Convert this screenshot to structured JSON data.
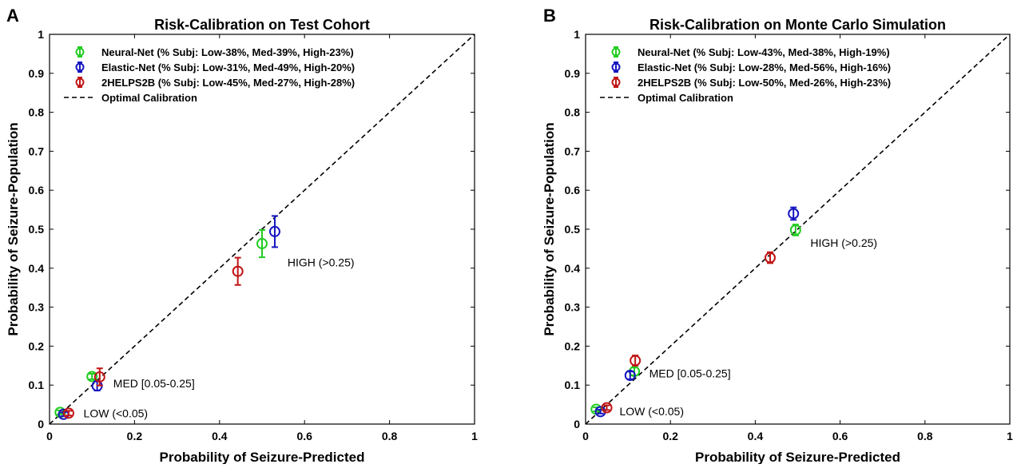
{
  "chart_data": [
    {
      "panel_label": "A",
      "type": "scatter",
      "title": "Risk-Calibration on Test Cohort",
      "xlabel": "Probability of Seizure-Predicted",
      "ylabel": "Probability of Seizure-Population",
      "xlim": [
        0,
        1
      ],
      "ylim": [
        0,
        1
      ],
      "xticks": [
        "0",
        "0.2",
        "0.4",
        "0.6",
        "0.8",
        "1"
      ],
      "yticks": [
        "0",
        "0.1",
        "0.2",
        "0.3",
        "0.4",
        "0.5",
        "0.6",
        "0.7",
        "0.8",
        "0.9",
        "1"
      ],
      "grid": false,
      "legend_position": "top-left",
      "series": [
        {
          "name": "Neural-Net (% Subj: Low-38%, Med-39%, High-23%)",
          "color": "#22cc22",
          "points": [
            {
              "x": 0.025,
              "y": 0.03,
              "err": 0.005
            },
            {
              "x": 0.1,
              "y": 0.122,
              "err": 0.007
            },
            {
              "x": 0.5,
              "y": 0.463,
              "err": 0.035
            }
          ]
        },
        {
          "name": "Elastic-Net (% Subj: Low-31%, Med-49%, High-20%)",
          "color": "#1515c0",
          "points": [
            {
              "x": 0.033,
              "y": 0.025,
              "err": 0.005
            },
            {
              "x": 0.112,
              "y": 0.098,
              "err": 0.012
            },
            {
              "x": 0.53,
              "y": 0.494,
              "err": 0.04
            }
          ]
        },
        {
          "name": "2HELPS2B (% Subj: Low-45%, Med-27%, High-28%)",
          "color": "#c01515",
          "points": [
            {
              "x": 0.045,
              "y": 0.028,
              "err": 0.006
            },
            {
              "x": 0.118,
              "y": 0.121,
              "err": 0.022
            },
            {
              "x": 0.443,
              "y": 0.392,
              "err": 0.035
            }
          ]
        }
      ],
      "reference_line": {
        "name": "Optimal Calibration",
        "from": [
          0,
          0
        ],
        "to": [
          1,
          1
        ]
      },
      "annotations": [
        {
          "text": "LOW (<0.05)",
          "x": 0.08,
          "y": 0.028
        },
        {
          "text": "MED [0.05-0.25]",
          "x": 0.15,
          "y": 0.105
        },
        {
          "text": "HIGH (>0.25)",
          "x": 0.56,
          "y": 0.415
        }
      ]
    },
    {
      "panel_label": "B",
      "type": "scatter",
      "title": "Risk-Calibration on Monte Carlo Simulation",
      "xlabel": "Probability of Seizure-Predicted",
      "ylabel": "Probability of Seizure-Population",
      "xlim": [
        0,
        1
      ],
      "ylim": [
        0,
        1
      ],
      "xticks": [
        "0",
        "0.2",
        "0.4",
        "0.6",
        "0.8",
        "1"
      ],
      "yticks": [
        "0",
        "0.1",
        "0.2",
        "0.3",
        "0.4",
        "0.5",
        "0.6",
        "0.7",
        "0.8",
        "0.9",
        "1"
      ],
      "grid": false,
      "legend_position": "top-left",
      "series": [
        {
          "name": "Neural-Net (% Subj: Low-43%, Med-38%, High-19%)",
          "color": "#22cc22",
          "points": [
            {
              "x": 0.025,
              "y": 0.038,
              "err": 0.005
            },
            {
              "x": 0.115,
              "y": 0.135,
              "err": 0.01
            },
            {
              "x": 0.495,
              "y": 0.498,
              "err": 0.014
            }
          ]
        },
        {
          "name": "Elastic-Net (% Subj: Low-28%, Med-56%, High-16%)",
          "color": "#1515c0",
          "points": [
            {
              "x": 0.035,
              "y": 0.032,
              "err": 0.005
            },
            {
              "x": 0.105,
              "y": 0.125,
              "err": 0.01
            },
            {
              "x": 0.49,
              "y": 0.54,
              "err": 0.016
            }
          ]
        },
        {
          "name": "2HELPS2B (% Subj: Low-50%, Med-26%, High-23%)",
          "color": "#c01515",
          "points": [
            {
              "x": 0.05,
              "y": 0.042,
              "err": 0.006
            },
            {
              "x": 0.117,
              "y": 0.163,
              "err": 0.013
            },
            {
              "x": 0.435,
              "y": 0.427,
              "err": 0.014
            }
          ]
        }
      ],
      "reference_line": {
        "name": "Optimal Calibration",
        "from": [
          0,
          0
        ],
        "to": [
          1,
          1
        ]
      },
      "annotations": [
        {
          "text": "LOW (<0.05)",
          "x": 0.08,
          "y": 0.033
        },
        {
          "text": "MED [0.05-0.25]",
          "x": 0.15,
          "y": 0.13
        },
        {
          "text": "HIGH (>0.25)",
          "x": 0.53,
          "y": 0.465
        }
      ]
    }
  ]
}
